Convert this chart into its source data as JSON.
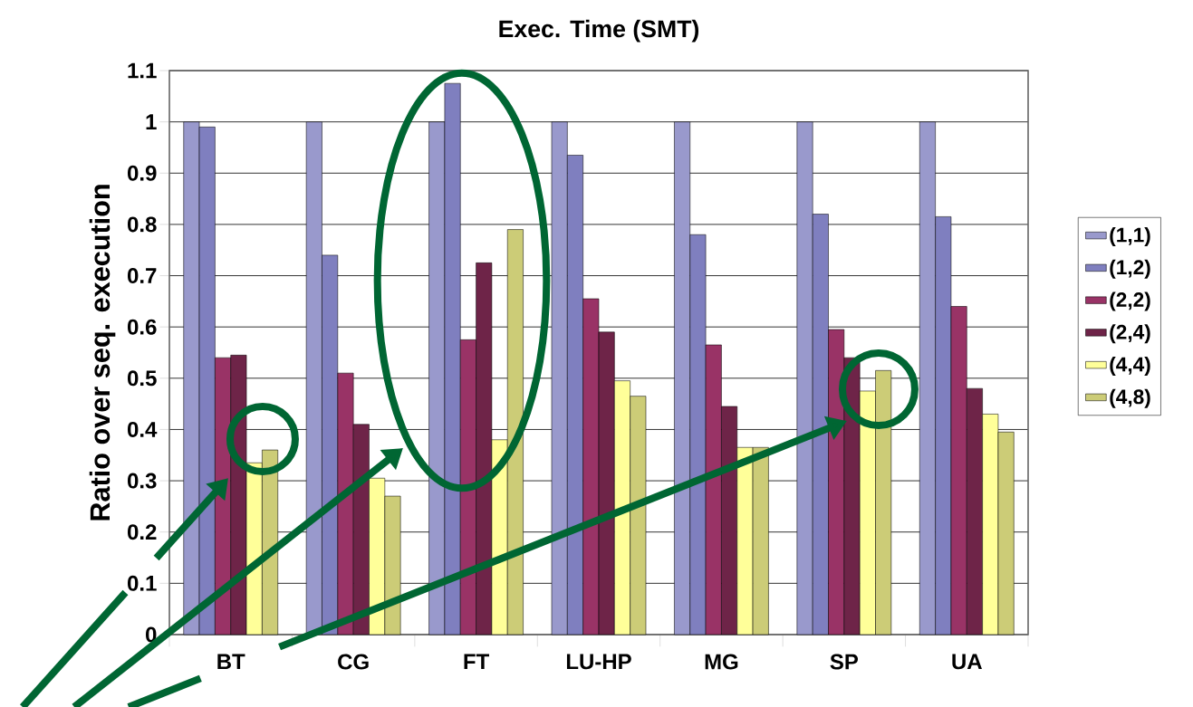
{
  "chart_data": {
    "type": "bar",
    "title": "Exec. Time (SMT)",
    "ylabel": "Ratio over seq. execution",
    "categories": [
      "BT",
      "CG",
      "FT",
      "LU-HP",
      "MG",
      "SP",
      "UA"
    ],
    "series": [
      {
        "name": "(1,1)",
        "color": "#9999cc",
        "values": [
          1,
          1,
          1,
          1,
          1,
          1,
          1
        ]
      },
      {
        "name": "(1,2)",
        "color": "#7f7fbf",
        "values": [
          0.99,
          0.74,
          1.075,
          0.935,
          0.78,
          0.82,
          0.815
        ]
      },
      {
        "name": "(2,2)",
        "color": "#993366",
        "values": [
          0.54,
          0.51,
          0.575,
          0.655,
          0.565,
          0.595,
          0.64
        ]
      },
      {
        "name": "(2,4)",
        "color": "#6e2448",
        "values": [
          0.545,
          0.41,
          0.725,
          0.59,
          0.445,
          0.54,
          0.48
        ]
      },
      {
        "name": "(4,4)",
        "color": "#ffff99",
        "values": [
          0.335,
          0.305,
          0.38,
          0.495,
          0.365,
          0.475,
          0.43
        ]
      },
      {
        "name": "(4,8)",
        "color": "#cccc77",
        "values": [
          0.36,
          0.27,
          0.79,
          0.465,
          0.365,
          0.515,
          0.395
        ]
      }
    ],
    "ylim": [
      0,
      1.1
    ],
    "yticks": [
      0,
      0.1,
      0.2,
      0.3,
      0.4,
      0.5,
      0.6,
      0.7,
      0.8,
      0.9,
      1,
      1.1
    ],
    "grid": "y",
    "legend": "right"
  }
}
